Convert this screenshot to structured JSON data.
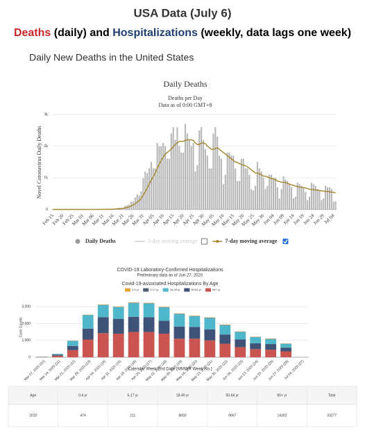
{
  "header": {
    "title": "USA Data (July 6)",
    "subtitle": [
      "Deaths",
      " (daily) and ",
      "Hospitalizations",
      " (weekly, data lags one week)"
    ],
    "section": "Daily New Deaths in the United States"
  },
  "chart_data": [
    {
      "type": "bar",
      "title": "Daily Deaths",
      "subtitle": [
        "Deaths per Day",
        "Data as of 0:00 GMT+8"
      ],
      "ylabel": "Novel Coronavirus Daily Deaths",
      "ylim": [
        0,
        3000
      ],
      "yticks": [
        0,
        {
          "value": 1000,
          "label": "1k"
        },
        {
          "value": 2000,
          "label": "2k"
        },
        {
          "value": 3000,
          "label": "3k"
        }
      ],
      "grid": true,
      "categories": [
        "Feb 15",
        null,
        null,
        null,
        null,
        "Feb 20",
        null,
        null,
        null,
        null,
        "Feb 25",
        null,
        null,
        null,
        null,
        "Mar 01",
        null,
        null,
        null,
        null,
        "Mar 06",
        null,
        null,
        null,
        null,
        "Mar 11",
        null,
        null,
        null,
        null,
        "Mar 16",
        null,
        null,
        null,
        null,
        "Mar 21",
        null,
        null,
        null,
        null,
        "Mar 26",
        null,
        null,
        null,
        null,
        "Mar 31",
        null,
        null,
        null,
        null,
        "Apr 05",
        null,
        null,
        null,
        null,
        "Apr 10",
        null,
        null,
        null,
        null,
        "Apr 15",
        null,
        null,
        null,
        null,
        "Apr 20",
        null,
        null,
        null,
        null,
        "Apr 25",
        null,
        null,
        null,
        null,
        "Apr 30",
        null,
        null,
        null,
        null,
        "May 05",
        null,
        null,
        null,
        null,
        "May 10",
        null,
        null,
        null,
        null,
        "May 15",
        null,
        null,
        null,
        null,
        "May 20",
        null,
        null,
        null,
        null,
        "May 25",
        null,
        null,
        null,
        null,
        "May 30",
        null,
        null,
        null,
        null,
        "Jun 04",
        null,
        null,
        null,
        null,
        "Jun 09",
        null,
        null,
        null,
        null,
        "Jun 14",
        null,
        null,
        null,
        null,
        "Jun 19",
        null,
        null,
        null,
        null,
        "Jun 24",
        null,
        null,
        null,
        null,
        "Jun 29",
        null,
        null,
        null,
        null,
        "Jul 04",
        null
      ],
      "series": [
        {
          "name": "Daily Deaths",
          "color": "#b5b5b5",
          "values": [
            0,
            0,
            0,
            0,
            0,
            0,
            0,
            0,
            0,
            0,
            0,
            0,
            0,
            0,
            0,
            1,
            1,
            5,
            3,
            2,
            1,
            2,
            4,
            3,
            4,
            7,
            7,
            10,
            12,
            10,
            23,
            23,
            40,
            56,
            49,
            46,
            115,
            137,
            154,
            250,
            257,
            378,
            475,
            445,
            575,
            990,
            1200,
            1150,
            1300,
            1500,
            1300,
            1300,
            2100,
            2000,
            2000,
            2100,
            2000,
            1600,
            1600,
            2400,
            2600,
            2200,
            2600,
            2000,
            1800,
            1800,
            2700,
            2400,
            2200,
            2000,
            2100,
            1200,
            1400,
            2500,
            2600,
            2200,
            1900,
            1700,
            1300,
            1300,
            2400,
            2600,
            2300,
            1700,
            1600,
            800,
            1100,
            1800,
            1800,
            1700,
            1700,
            1300,
            900,
            900,
            1600,
            1600,
            1300,
            1300,
            1100,
            640,
            600,
            750,
            1500,
            1300,
            1200,
            1000,
            650,
            750,
            1100,
            1100,
            1000,
            1000,
            700,
            350,
            650,
            1050,
            950,
            900,
            800,
            700,
            350,
            400,
            850,
            800,
            750,
            700,
            550,
            300,
            400,
            850,
            800,
            750,
            650,
            600,
            300,
            350,
            750,
            700,
            700,
            650,
            250,
            250
          ]
        },
        {
          "name": "7-day moving average",
          "color": "#a5852d",
          "type": "line",
          "values": [
            0,
            0,
            0,
            0,
            0,
            0,
            0,
            0,
            0,
            0,
            0,
            0,
            0,
            0,
            0,
            0,
            0,
            1,
            1,
            2,
            2,
            2,
            3,
            3,
            3,
            5,
            6,
            7,
            9,
            10,
            13,
            15,
            20,
            26,
            30,
            37,
            50,
            65,
            80,
            110,
            140,
            180,
            230,
            280,
            350,
            450,
            560,
            680,
            800,
            920,
            1040,
            1150,
            1300,
            1430,
            1550,
            1650,
            1750,
            1800,
            1850,
            1900,
            1980,
            2050,
            2100,
            2150,
            2150,
            2150,
            2180,
            2200,
            2200,
            2200,
            2180,
            2100,
            2050,
            2050,
            2100,
            2100,
            2080,
            2000,
            1950,
            1900,
            1900,
            1920,
            1950,
            1900,
            1850,
            1800,
            1750,
            1700,
            1650,
            1600,
            1550,
            1500,
            1480,
            1450,
            1420,
            1400,
            1380,
            1350,
            1300,
            1250,
            1200,
            1150,
            1150,
            1120,
            1100,
            1050,
            1050,
            1030,
            1000,
            980,
            960,
            940,
            900,
            880,
            860,
            860,
            850,
            830,
            800,
            780,
            760,
            740,
            720,
            710,
            700,
            690,
            680,
            660,
            640,
            630,
            620,
            620,
            610,
            600,
            590,
            580,
            570,
            570,
            560,
            550,
            540,
            520
          ]
        }
      ],
      "hidden_series": [
        {
          "name": "3-day moving average",
          "color": "#cccccc"
        }
      ]
    },
    {
      "type": "stacked_bar",
      "title": "COVID-19 Laboratory-Confirmed Hospitalizations",
      "subtitle": [
        "Preliminary data as of Jun 27, 2020",
        "Covid-19-associated Hospitalizations By Age"
      ],
      "ylabel": "Case Counts",
      "xlabel": "Calendar Week End Date (MMWR Week No.)",
      "ylim": [
        0,
        3500
      ],
      "yticks": [
        0,
        {
          "value": 1000,
          "label": "1,000"
        },
        {
          "value": 2000,
          "label": "2,000"
        },
        {
          "value": 3000,
          "label": "3,000"
        }
      ],
      "grid": true,
      "categories": [
        "Mar 07, 2020 (10)",
        "Mar 14, 2020 (11)",
        "Mar 21, 2020 (12)",
        "Mar 28, 2020 (13)",
        "Apr 04, 2020 (14)",
        "Apr 11, 2020 (15)",
        "Apr 18, 2020 (16)",
        "Apr 25, 2020 (17)",
        "May 02, 2020 (18)",
        "May 09, 2020 (19)",
        "May 16, 2020 (20)",
        "May 23, 2020 (21)",
        "May 30, 2020 (22)",
        "Jun 06, 2020 (23)",
        "Jun 13, 2020 (24)",
        "Jun 20, 2020 (25)",
        "Jun 27, 2020 (26)",
        "Jul 04, 2020 (27)"
      ],
      "series": [
        {
          "name": "0-4 yr",
          "color": "#e8a33a",
          "values": [
            2,
            3,
            10,
            15,
            20,
            20,
            22,
            22,
            20,
            20,
            20,
            20,
            20,
            18,
            15,
            15,
            12,
            0
          ]
        },
        {
          "name": "5-17 yr",
          "color": "#4f5f73",
          "values": [
            1,
            2,
            5,
            10,
            12,
            12,
            15,
            15,
            15,
            15,
            15,
            15,
            15,
            15,
            15,
            15,
            12,
            0
          ]
        },
        {
          "name": "18-49 yr",
          "color": "#4fb7c9",
          "values": [
            10,
            50,
            300,
            800,
            720,
            700,
            820,
            820,
            800,
            750,
            630,
            680,
            550,
            450,
            360,
            300,
            220,
            0
          ]
        },
        {
          "name": "50-64 yr",
          "color": "#3f5278",
          "values": [
            8,
            60,
            250,
            650,
            950,
            880,
            900,
            870,
            760,
            720,
            700,
            650,
            550,
            450,
            350,
            330,
            220,
            0
          ]
        },
        {
          "name": "65+ yr",
          "color": "#c95450",
          "values": [
            10,
            90,
            420,
            1050,
            1430,
            1400,
            1500,
            1500,
            1400,
            1100,
            1100,
            1000,
            800,
            600,
            480,
            450,
            350,
            0
          ]
        }
      ]
    }
  ],
  "table": {
    "header": [
      "Age",
      "0-4 yr",
      "5-17 yr",
      "18-49 yr",
      "50-64 yr",
      "65+ yr",
      "Total"
    ],
    "rows": [
      [
        "2020",
        474,
        211,
        8693,
        9667,
        14302,
        33277
      ]
    ]
  }
}
